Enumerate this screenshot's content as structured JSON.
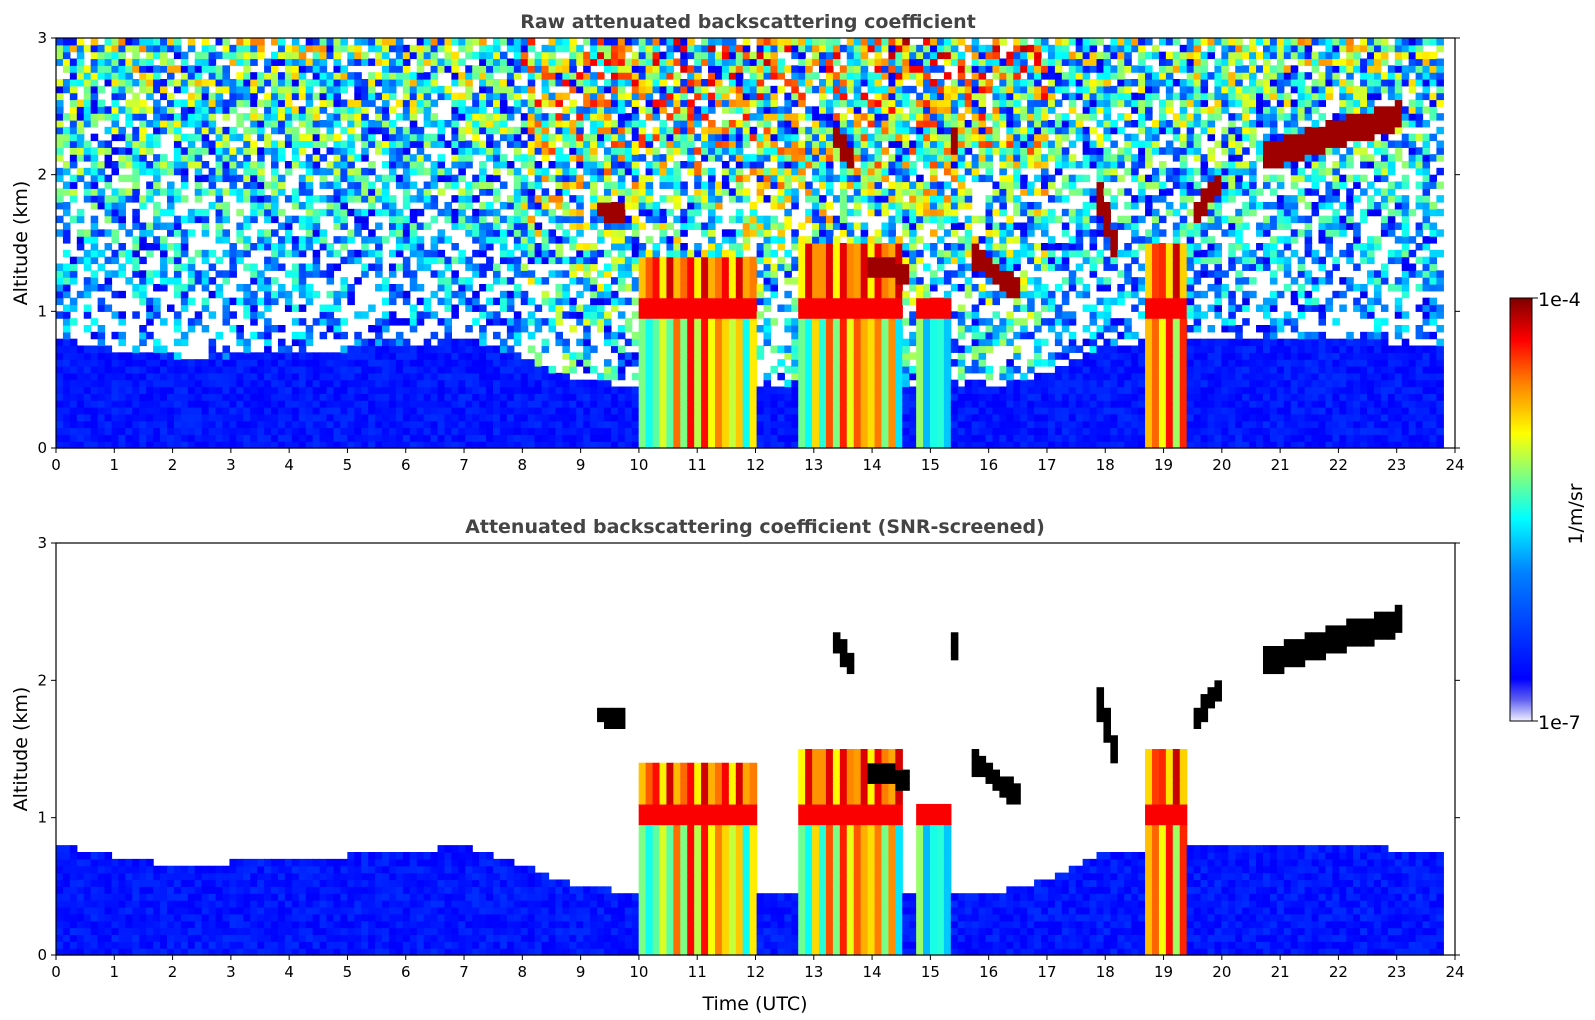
{
  "colors": {
    "jet": [
      "#00008f",
      "#0000ff",
      "#0080ff",
      "#00ffff",
      "#80ff80",
      "#ffff00",
      "#ff8000",
      "#ff0000",
      "#800000"
    ],
    "low_end": [
      "#f0f0ff",
      "#b0b0f0",
      "#6060f0"
    ],
    "saturated": "#000000"
  },
  "colorbar": {
    "label": "1/m/sr",
    "max_label": "1e-4",
    "min_label": "1e-7",
    "range": [
      1e-07,
      0.0001
    ],
    "scale": "log"
  },
  "chart_data": [
    {
      "type": "heatmap",
      "title": "Raw attenuated backscattering coefficient",
      "xlabel": "",
      "ylabel": "Altitude (km)",
      "xlim": [
        0,
        24
      ],
      "ylim": [
        0,
        3
      ],
      "x_ticks": [
        "0",
        "1",
        "2",
        "3",
        "4",
        "5",
        "6",
        "7",
        "8",
        "9",
        "10",
        "11",
        "12",
        "13",
        "14",
        "15",
        "16",
        "17",
        "18",
        "19",
        "20",
        "21",
        "22",
        "23",
        "24"
      ],
      "y_ticks": [
        "0",
        "1",
        "2",
        "3"
      ],
      "data_extent_hours": 23.8,
      "features": [
        {
          "kind": "precip_column",
          "x": [
            10.0,
            12.0
          ],
          "top_km": 1.4
        },
        {
          "kind": "precip_column",
          "x": [
            12.7,
            14.5
          ],
          "top_km": 1.5
        },
        {
          "kind": "precip_column",
          "x": [
            14.7,
            15.3
          ],
          "top_km": 1.1
        },
        {
          "kind": "precip_column",
          "x": [
            18.7,
            19.4
          ],
          "top_km": 1.5
        },
        {
          "kind": "cloud_layer",
          "x": [
            20.7,
            23.1
          ],
          "alt_km": [
            2.1,
            2.5
          ]
        },
        {
          "kind": "cloud_layer",
          "x": [
            9.3,
            9.7
          ],
          "alt_km": [
            1.7,
            1.75
          ]
        },
        {
          "kind": "cloud_layer",
          "x": [
            13.9,
            14.6
          ],
          "alt_km": [
            1.35,
            1.3
          ]
        },
        {
          "kind": "cloud_layer",
          "x": [
            15.7,
            16.5
          ],
          "alt_km": [
            1.4,
            1.1
          ]
        }
      ]
    },
    {
      "type": "heatmap",
      "title": "Attenuated backscattering coefficient (SNR-screened)",
      "xlabel": "Time (UTC)",
      "ylabel": "Altitude (km)",
      "xlim": [
        0,
        24
      ],
      "ylim": [
        0,
        3
      ],
      "x_ticks": [
        "0",
        "1",
        "2",
        "3",
        "4",
        "5",
        "6",
        "7",
        "8",
        "9",
        "10",
        "11",
        "12",
        "13",
        "14",
        "15",
        "16",
        "17",
        "18",
        "19",
        "20",
        "21",
        "22",
        "23",
        "24"
      ],
      "y_ticks": [
        "0",
        "1",
        "2",
        "3"
      ],
      "data_extent_hours": 23.8,
      "boundary_layer_top_km": [
        [
          0,
          0.8
        ],
        [
          2,
          0.65
        ],
        [
          4,
          0.7
        ],
        [
          6,
          0.75
        ],
        [
          7,
          0.8
        ],
        [
          9,
          0.5
        ],
        [
          10,
          0.45
        ],
        [
          16,
          0.45
        ],
        [
          17,
          0.55
        ],
        [
          18,
          0.75
        ],
        [
          20,
          0.8
        ],
        [
          22,
          0.8
        ],
        [
          23.8,
          0.75
        ]
      ]
    }
  ]
}
